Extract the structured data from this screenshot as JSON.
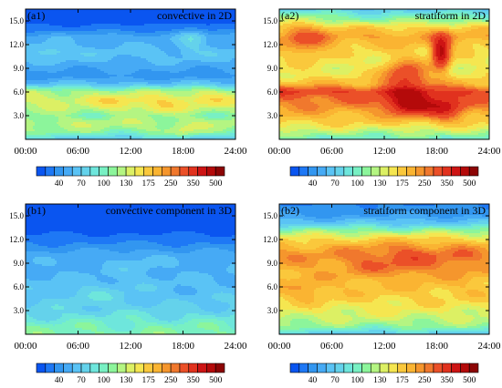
{
  "chart_data": [
    {
      "type": "heatmap",
      "panel_label": "(a1)",
      "title": "convective in 2D",
      "x_ticks": [
        "00:00",
        "06:00",
        "12:00",
        "18:00",
        "24:00"
      ],
      "y_ticks": [
        "3.0",
        "6.0",
        "9.0",
        "12.0",
        "15.0"
      ],
      "xlim": [
        0,
        24
      ],
      "ylim": [
        0,
        16.5
      ],
      "grid": false,
      "profile": [
        [
          0,
          60
        ],
        [
          1,
          95
        ],
        [
          2,
          110
        ],
        [
          3,
          95
        ],
        [
          4,
          110
        ],
        [
          5,
          125
        ],
        [
          6,
          105
        ],
        [
          7,
          55
        ],
        [
          8,
          35
        ],
        [
          9,
          42
        ],
        [
          10,
          50
        ],
        [
          11,
          55
        ],
        [
          12,
          48
        ],
        [
          13,
          45
        ],
        [
          14,
          25
        ],
        [
          15,
          15
        ],
        [
          16.5,
          12
        ]
      ],
      "hotspots": [
        {
          "x": 15.5,
          "y": 4.3,
          "rx": 2.5,
          "ry": 1.0,
          "amp": 35
        },
        {
          "x": 10.5,
          "y": 4.6,
          "rx": 2.5,
          "ry": 1.0,
          "amp": 25
        },
        {
          "x": 20.5,
          "y": 5.2,
          "rx": 2.5,
          "ry": 1.2,
          "amp": 20
        },
        {
          "x": 19.0,
          "y": 12.8,
          "rx": 1.5,
          "ry": 1.5,
          "amp": 20
        },
        {
          "x": 3.0,
          "y": 11.2,
          "rx": 2.0,
          "ry": 1.0,
          "amp": 15
        },
        {
          "x": 18.0,
          "y": 1.0,
          "rx": 1.5,
          "ry": 0.8,
          "amp": 25
        }
      ],
      "colorbar": {
        "labels": [
          "40",
          "70",
          "100",
          "130",
          "175",
          "250",
          "350",
          "500"
        ]
      }
    },
    {
      "type": "heatmap",
      "panel_label": "(a2)",
      "title": "stratiform in 2D",
      "x_ticks": [
        "00:00",
        "06:00",
        "12:00",
        "18:00",
        "24:00"
      ],
      "y_ticks": [
        "3.0",
        "6.0",
        "9.0",
        "12.0",
        "15.0"
      ],
      "xlim": [
        0,
        24
      ],
      "ylim": [
        0,
        16.5
      ],
      "grid": false,
      "profile": [
        [
          0,
          80
        ],
        [
          1,
          110
        ],
        [
          2,
          150
        ],
        [
          3,
          180
        ],
        [
          4,
          210
        ],
        [
          5,
          240
        ],
        [
          6,
          300
        ],
        [
          7,
          180
        ],
        [
          8,
          140
        ],
        [
          9,
          130
        ],
        [
          10,
          130
        ],
        [
          11,
          140
        ],
        [
          12,
          170
        ],
        [
          13,
          200
        ],
        [
          14,
          160
        ],
        [
          15,
          100
        ],
        [
          16.5,
          60
        ]
      ],
      "hotspots": [
        {
          "x": 15.0,
          "y": 4.5,
          "rx": 2.5,
          "ry": 1.3,
          "amp": 250
        },
        {
          "x": 14.5,
          "y": 8.0,
          "rx": 2.5,
          "ry": 2.0,
          "amp": 170
        },
        {
          "x": 18.5,
          "y": 11.0,
          "rx": 1.0,
          "ry": 2.0,
          "amp": 280
        },
        {
          "x": 19.0,
          "y": 4.0,
          "rx": 2.0,
          "ry": 1.5,
          "amp": 150
        },
        {
          "x": 3.0,
          "y": 12.5,
          "rx": 2.5,
          "ry": 2.5,
          "amp": 80
        }
      ],
      "colorbar": {
        "labels": [
          "40",
          "70",
          "100",
          "130",
          "175",
          "250",
          "350",
          "500"
        ]
      }
    },
    {
      "type": "heatmap",
      "panel_label": "(b1)",
      "title": "convective component  in 3D",
      "x_ticks": [
        "00:00",
        "06:00",
        "12:00",
        "18:00",
        "24:00"
      ],
      "y_ticks": [
        "3.0",
        "6.0",
        "9.0",
        "12.0",
        "15.0"
      ],
      "xlim": [
        0,
        24
      ],
      "ylim": [
        0,
        16.5
      ],
      "grid": false,
      "profile": [
        [
          0,
          90
        ],
        [
          1,
          85
        ],
        [
          2,
          75
        ],
        [
          3,
          65
        ],
        [
          4,
          58
        ],
        [
          5,
          55
        ],
        [
          6,
          53
        ],
        [
          7,
          50
        ],
        [
          8,
          48
        ],
        [
          9,
          47
        ],
        [
          10,
          45
        ],
        [
          11,
          35
        ],
        [
          12,
          25
        ],
        [
          13,
          18
        ],
        [
          14,
          14
        ],
        [
          15,
          12
        ],
        [
          16.5,
          10
        ]
      ],
      "hotspots": [
        {
          "x": 8.0,
          "y": 5.0,
          "rx": 4.0,
          "ry": 1.5,
          "amp": 12
        },
        {
          "x": 12.5,
          "y": 8.5,
          "rx": 3.0,
          "ry": 2.0,
          "amp": 8
        }
      ],
      "colorbar": {
        "labels": [
          "40",
          "70",
          "100",
          "130",
          "175",
          "250",
          "350",
          "500"
        ]
      }
    },
    {
      "type": "heatmap",
      "panel_label": "(b2)",
      "title": "stratiform component  in 3D",
      "x_ticks": [
        "00:00",
        "06:00",
        "12:00",
        "18:00",
        "24:00"
      ],
      "y_ticks": [
        "3.0",
        "6.0",
        "9.0",
        "12.0",
        "15.0"
      ],
      "xlim": [
        0,
        24
      ],
      "ylim": [
        0,
        16.5
      ],
      "grid": false,
      "profile": [
        [
          0,
          60
        ],
        [
          1,
          95
        ],
        [
          2,
          115
        ],
        [
          3,
          130
        ],
        [
          4,
          145
        ],
        [
          5,
          160
        ],
        [
          6,
          170
        ],
        [
          7,
          175
        ],
        [
          8,
          190
        ],
        [
          9,
          200
        ],
        [
          10,
          210
        ],
        [
          11,
          190
        ],
        [
          12,
          150
        ],
        [
          13,
          100
        ],
        [
          14,
          60
        ],
        [
          15,
          40
        ],
        [
          16.5,
          30
        ]
      ],
      "hotspots": [
        {
          "x": 15.0,
          "y": 9.5,
          "rx": 3.0,
          "ry": 2.0,
          "amp": 70
        },
        {
          "x": 10.0,
          "y": 9.0,
          "rx": 3.0,
          "ry": 2.0,
          "amp": 40
        },
        {
          "x": 20.5,
          "y": 9.5,
          "rx": 2.5,
          "ry": 2.0,
          "amp": 40
        },
        {
          "x": 3.0,
          "y": 5.5,
          "rx": 2.0,
          "ry": 1.5,
          "amp": 40
        }
      ],
      "colorbar": {
        "labels": [
          "40",
          "70",
          "100",
          "130",
          "175",
          "250",
          "350",
          "500"
        ]
      }
    }
  ],
  "colormap": [
    "#0a55f0",
    "#1e78f5",
    "#3296f0",
    "#46aaf5",
    "#5ac3f5",
    "#64d2eb",
    "#6ee6dc",
    "#78f0c3",
    "#8cf59b",
    "#b4f582",
    "#dcf064",
    "#f5e650",
    "#fac83c",
    "#fab432",
    "#f5962d",
    "#f0782d",
    "#eb5028",
    "#e1321e",
    "#cd1414",
    "#b40a0a",
    "#8c0505"
  ],
  "colormap_thresholds": [
    20,
    30,
    40,
    50,
    60,
    70,
    80,
    90,
    100,
    115,
    130,
    150,
    175,
    200,
    225,
    250,
    300,
    350,
    400,
    500
  ]
}
